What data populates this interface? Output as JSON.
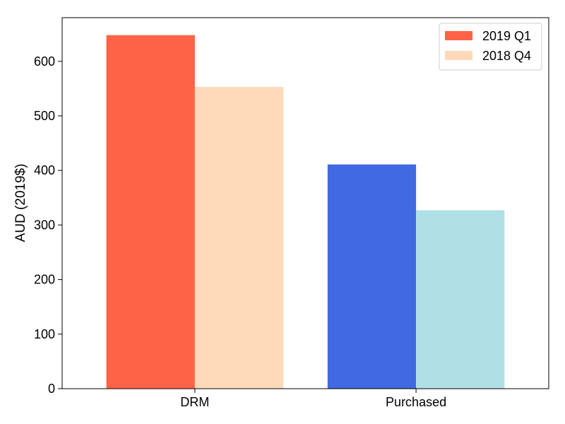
{
  "chart_data": {
    "type": "bar",
    "categories": [
      "DRM",
      "Purchased"
    ],
    "series": [
      {
        "name": "2019 Q1",
        "values": [
          648,
          411
        ]
      },
      {
        "name": "2018 Q4",
        "values": [
          553,
          327
        ]
      }
    ],
    "bar_colors": [
      [
        "#ff6347",
        "#ffdab9"
      ],
      [
        "#4169e1",
        "#b0e0e6"
      ]
    ],
    "legend_colors": [
      "#ff6347",
      "#ffdab9"
    ],
    "ylabel": "AUD (2019$)",
    "xlabel": "",
    "ylim": [
      0,
      680
    ],
    "yticks": [
      0,
      100,
      200,
      300,
      400,
      500,
      600
    ],
    "legend_position": "top-right",
    "grid": false
  }
}
